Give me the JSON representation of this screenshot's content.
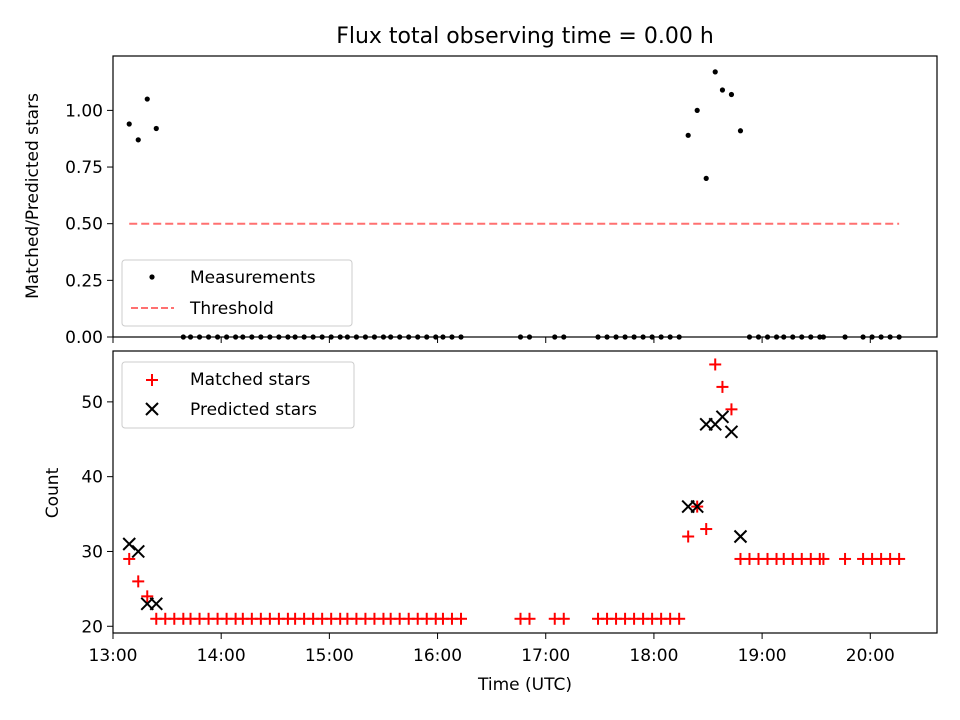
{
  "chart_data": [
    {
      "type": "scatter",
      "title": "Flux total observing time = 0.00 h",
      "xlabel": "",
      "ylabel": "Matched/Predicted stars",
      "xlim": [
        "13:00",
        "20:37"
      ],
      "ylim": [
        0,
        1.24
      ],
      "yticks": [
        "0.00",
        "0.25",
        "0.50",
        "0.75",
        "1.00"
      ],
      "legend_position": "lower-left",
      "series": [
        {
          "name": "Measurements",
          "color": "#000000",
          "marker": "dot",
          "points": [
            [
              "13:09",
              0.94
            ],
            [
              "13:14",
              0.87
            ],
            [
              "13:19",
              1.05
            ],
            [
              "13:24",
              0.92
            ],
            [
              "13:39",
              0
            ],
            [
              "13:43",
              0
            ],
            [
              "13:48",
              0
            ],
            [
              "13:53",
              0
            ],
            [
              "13:58",
              0
            ],
            [
              "14:03",
              0
            ],
            [
              "14:08",
              0
            ],
            [
              "14:12",
              0
            ],
            [
              "14:17",
              0
            ],
            [
              "14:22",
              0
            ],
            [
              "14:27",
              0
            ],
            [
              "14:32",
              0
            ],
            [
              "14:37",
              0
            ],
            [
              "14:41",
              0
            ],
            [
              "14:46",
              0
            ],
            [
              "14:51",
              0
            ],
            [
              "14:56",
              0
            ],
            [
              "15:01",
              0
            ],
            [
              "15:06",
              0
            ],
            [
              "15:10",
              0
            ],
            [
              "15:15",
              0
            ],
            [
              "15:20",
              0
            ],
            [
              "15:25",
              0
            ],
            [
              "15:30",
              0
            ],
            [
              "15:34",
              0
            ],
            [
              "15:39",
              0
            ],
            [
              "15:44",
              0
            ],
            [
              "15:49",
              0
            ],
            [
              "15:54",
              0
            ],
            [
              "15:59",
              0
            ],
            [
              "16:03",
              0
            ],
            [
              "16:08",
              0
            ],
            [
              "16:13",
              0
            ],
            [
              "16:46",
              0
            ],
            [
              "16:51",
              0
            ],
            [
              "17:05",
              0
            ],
            [
              "17:10",
              0
            ],
            [
              "17:29",
              0
            ],
            [
              "17:34",
              0
            ],
            [
              "17:39",
              0
            ],
            [
              "17:44",
              0
            ],
            [
              "17:49",
              0
            ],
            [
              "17:54",
              0
            ],
            [
              "17:59",
              0
            ],
            [
              "18:04",
              0
            ],
            [
              "18:09",
              0
            ],
            [
              "18:14",
              0
            ],
            [
              "18:19",
              0.89
            ],
            [
              "18:24",
              1.0
            ],
            [
              "18:29",
              0.7
            ],
            [
              "18:34",
              1.17
            ],
            [
              "18:38",
              1.09
            ],
            [
              "18:43",
              1.07
            ],
            [
              "18:48",
              0.91
            ],
            [
              "18:53",
              0
            ],
            [
              "18:58",
              0
            ],
            [
              "19:03",
              0
            ],
            [
              "19:08",
              0
            ],
            [
              "19:12",
              0
            ],
            [
              "19:17",
              0
            ],
            [
              "19:22",
              0
            ],
            [
              "19:27",
              0
            ],
            [
              "19:32",
              0
            ],
            [
              "19:34",
              0
            ],
            [
              "19:46",
              0
            ],
            [
              "19:56",
              0
            ],
            [
              "20:01",
              0
            ],
            [
              "20:06",
              0
            ],
            [
              "20:11",
              0
            ],
            [
              "20:16",
              0
            ]
          ]
        },
        {
          "name": "Threshold",
          "color": "#ff7070",
          "line": "dashed",
          "points": [
            [
              "13:09",
              0.5
            ],
            [
              "20:16",
              0.5
            ]
          ]
        }
      ]
    },
    {
      "type": "scatter",
      "title": "",
      "xlabel": "Time (UTC)",
      "ylabel": "Count",
      "xlim": [
        "13:00",
        "20:37"
      ],
      "ylim": [
        19.1,
        56.8
      ],
      "xticks": [
        "13:00",
        "14:00",
        "15:00",
        "16:00",
        "17:00",
        "18:00",
        "19:00",
        "20:00"
      ],
      "yticks": [
        "20",
        "30",
        "40",
        "50"
      ],
      "legend_position": "top-left",
      "series": [
        {
          "name": "Matched stars",
          "color": "#ff0000",
          "marker": "plus",
          "points": [
            [
              "13:09",
              29
            ],
            [
              "13:14",
              26
            ],
            [
              "13:19",
              24
            ],
            [
              "13:24",
              21
            ],
            [
              "13:29",
              21
            ],
            [
              "13:34",
              21
            ],
            [
              "13:39",
              21
            ],
            [
              "13:43",
              21
            ],
            [
              "13:48",
              21
            ],
            [
              "13:53",
              21
            ],
            [
              "13:58",
              21
            ],
            [
              "14:03",
              21
            ],
            [
              "14:08",
              21
            ],
            [
              "14:12",
              21
            ],
            [
              "14:17",
              21
            ],
            [
              "14:22",
              21
            ],
            [
              "14:27",
              21
            ],
            [
              "14:32",
              21
            ],
            [
              "14:37",
              21
            ],
            [
              "14:41",
              21
            ],
            [
              "14:46",
              21
            ],
            [
              "14:51",
              21
            ],
            [
              "14:56",
              21
            ],
            [
              "15:01",
              21
            ],
            [
              "15:06",
              21
            ],
            [
              "15:10",
              21
            ],
            [
              "15:15",
              21
            ],
            [
              "15:20",
              21
            ],
            [
              "15:25",
              21
            ],
            [
              "15:30",
              21
            ],
            [
              "15:34",
              21
            ],
            [
              "15:39",
              21
            ],
            [
              "15:44",
              21
            ],
            [
              "15:49",
              21
            ],
            [
              "15:54",
              21
            ],
            [
              "15:59",
              21
            ],
            [
              "16:03",
              21
            ],
            [
              "16:08",
              21
            ],
            [
              "16:13",
              21
            ],
            [
              "16:46",
              21
            ],
            [
              "16:51",
              21
            ],
            [
              "17:05",
              21
            ],
            [
              "17:10",
              21
            ],
            [
              "17:29",
              21
            ],
            [
              "17:34",
              21
            ],
            [
              "17:39",
              21
            ],
            [
              "17:44",
              21
            ],
            [
              "17:49",
              21
            ],
            [
              "17:54",
              21
            ],
            [
              "17:59",
              21
            ],
            [
              "18:04",
              21
            ],
            [
              "18:09",
              21
            ],
            [
              "18:14",
              21
            ],
            [
              "18:19",
              32
            ],
            [
              "18:24",
              36
            ],
            [
              "18:29",
              33
            ],
            [
              "18:34",
              55
            ],
            [
              "18:38",
              52
            ],
            [
              "18:43",
              49
            ],
            [
              "18:48",
              29
            ],
            [
              "18:53",
              29
            ],
            [
              "18:58",
              29
            ],
            [
              "19:03",
              29
            ],
            [
              "19:08",
              29
            ],
            [
              "19:12",
              29
            ],
            [
              "19:17",
              29
            ],
            [
              "19:22",
              29
            ],
            [
              "19:27",
              29
            ],
            [
              "19:32",
              29
            ],
            [
              "19:34",
              29
            ],
            [
              "19:46",
              29
            ],
            [
              "19:56",
              29
            ],
            [
              "20:01",
              29
            ],
            [
              "20:06",
              29
            ],
            [
              "20:11",
              29
            ],
            [
              "20:16",
              29
            ]
          ]
        },
        {
          "name": "Predicted stars",
          "color": "#000000",
          "marker": "x",
          "points": [
            [
              "13:09",
              31
            ],
            [
              "13:14",
              30
            ],
            [
              "13:19",
              23
            ],
            [
              "13:24",
              23
            ],
            [
              "18:19",
              36
            ],
            [
              "18:24",
              36
            ],
            [
              "18:29",
              47
            ],
            [
              "18:34",
              47
            ],
            [
              "18:38",
              48
            ],
            [
              "18:43",
              46
            ],
            [
              "18:48",
              32
            ]
          ]
        }
      ]
    }
  ]
}
